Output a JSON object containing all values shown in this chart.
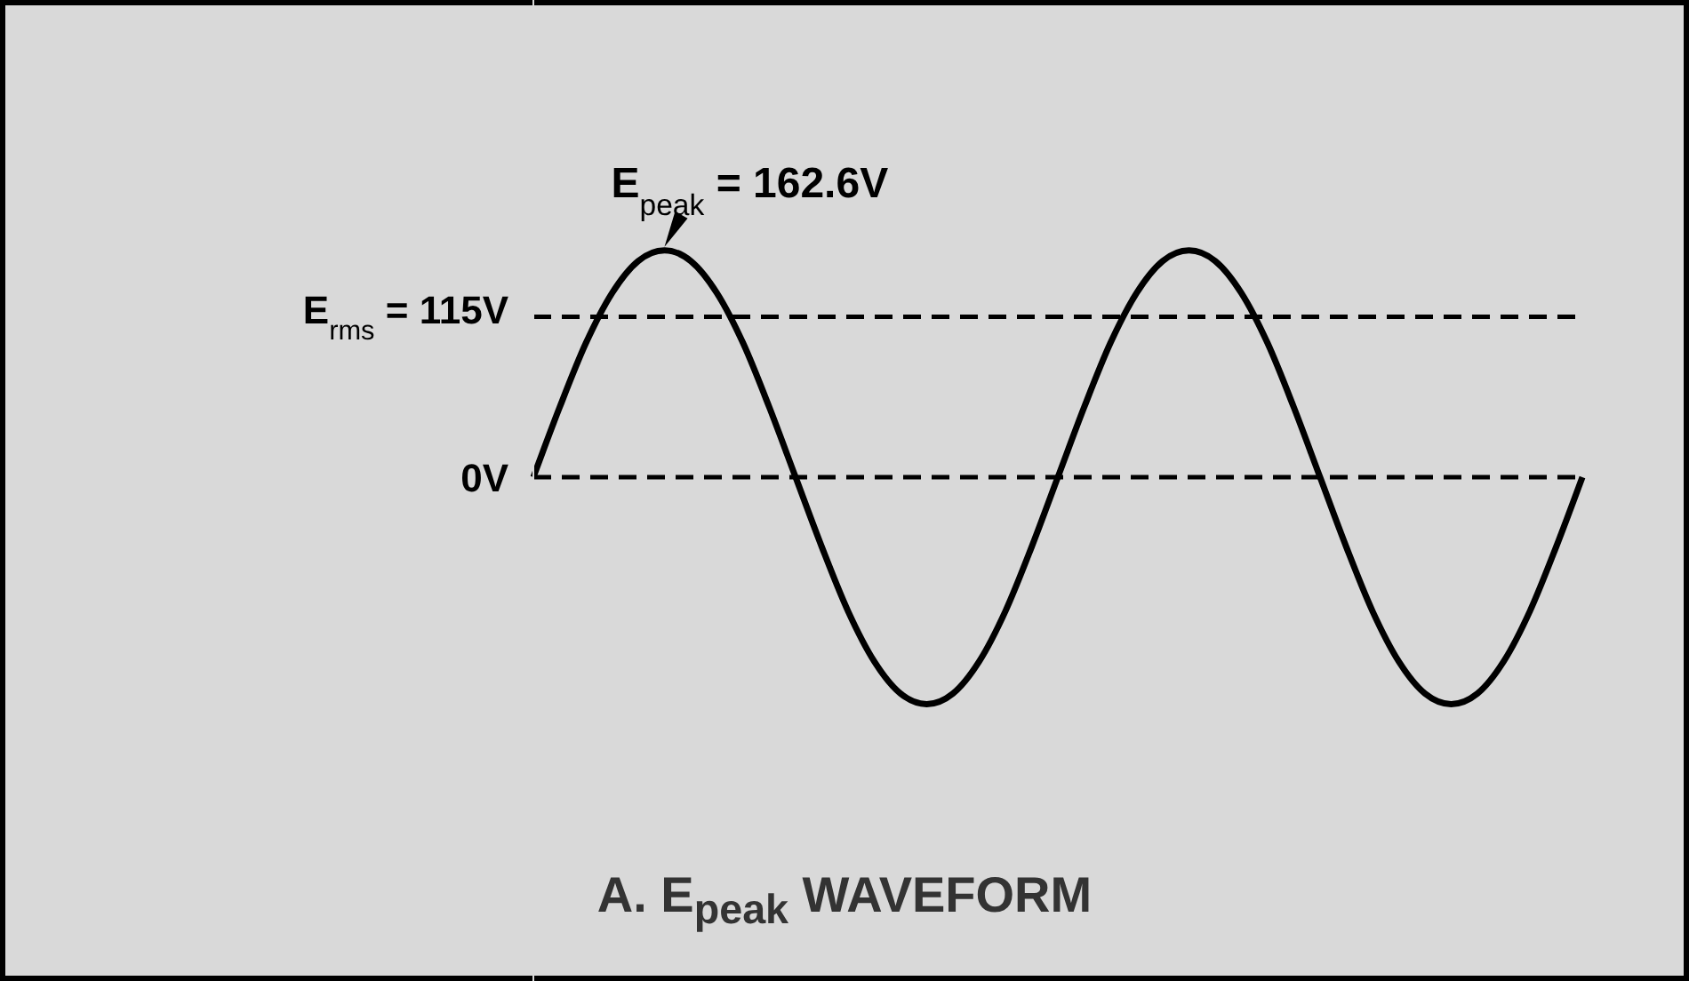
{
  "chart_data": {
    "type": "line",
    "title": "A.  E$_{peak}$ WAVEFORM",
    "categories": [
      null,
      null,
      null,
      null,
      null,
      null,
      null,
      null,
      null,
      null,
      null,
      null,
      null,
      null,
      null,
      null,
      null,
      null,
      null,
      null,
      null,
      null,
      null,
      null,
      null,
      null,
      null,
      null,
      null,
      null,
      null,
      null,
      null,
      null,
      null,
      null,
      null,
      null,
      null,
      null,
      null
    ],
    "series": [
      {
        "color": "#000000",
        "values": [
          0,
          50,
          96,
          132,
          155,
          162.6,
          155,
          132,
          96,
          50,
          0,
          -50,
          -96,
          -132,
          -155,
          -162.6,
          -155,
          -132,
          -96,
          -50,
          0,
          50,
          96,
          132,
          155,
          162.6,
          155,
          132,
          96,
          50,
          0,
          -50,
          -96,
          -132,
          -155,
          -162.6,
          -155,
          -132,
          -96,
          -50,
          0
        ]
      }
    ],
    "ylim": [
      -361,
      342
    ],
    "yticks": [
      {
        "value": 0,
        "label": "0V"
      },
      {
        "value": 115,
        "label": "E$_{rms}$ = 115V"
      }
    ],
    "tick_labels": "y",
    "ref_lines": [
      {
        "axis": "y",
        "value": 115,
        "line_style": "dashed",
        "color": "#000000"
      },
      {
        "axis": "y",
        "value": 0,
        "line_style": "dashed",
        "color": "#000000"
      }
    ],
    "annotations": [
      "E$_{peak}$ = 162.6V"
    ],
    "marker": "none",
    "line_style": "solid"
  }
}
